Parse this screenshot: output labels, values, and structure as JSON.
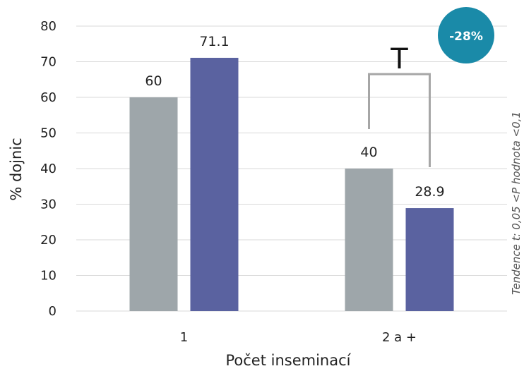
{
  "chart_data": {
    "type": "bar",
    "categories": [
      "1",
      "2 a +"
    ],
    "series": [
      {
        "values": [
          60,
          40
        ],
        "color": "#9ea6aa"
      },
      {
        "values": [
          71.1,
          28.9
        ],
        "color": "#5a62a0"
      }
    ],
    "data_labels": [
      [
        "60",
        "40"
      ],
      [
        "71.1",
        "28.9"
      ]
    ],
    "xlabel": "Počet inseminací",
    "ylabel": "% dojnic",
    "ylim": [
      0,
      80
    ],
    "yticks": [
      0,
      10,
      20,
      30,
      40,
      50,
      60,
      70,
      80
    ],
    "grid": true,
    "badge": {
      "text": "-28%",
      "color": "#1a8aa8"
    },
    "significance_marker": "T",
    "footnote": "Tendence t: 0,05 <P hodnota <0,1"
  }
}
